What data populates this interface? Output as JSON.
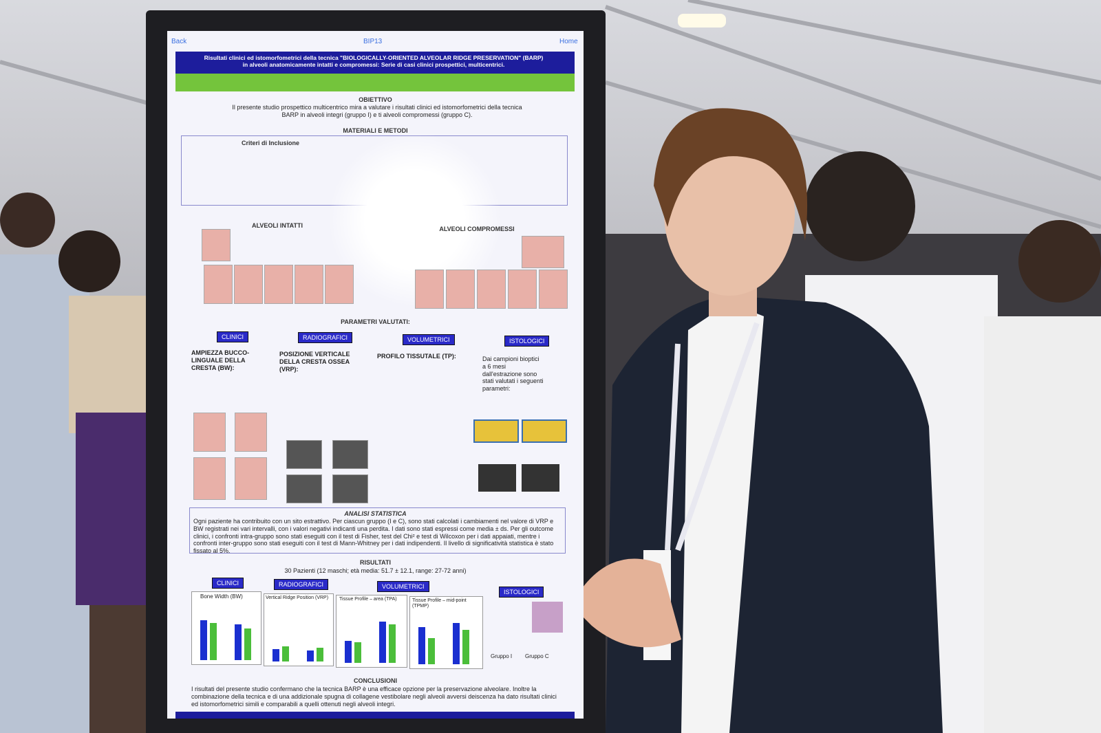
{
  "screen": {
    "nav": {
      "back": "Back",
      "code": "BIP13",
      "home": "Home"
    },
    "title": "Risultati clinici ed istomorfometrici della tecnica \"BIOLOGICALLY-ORIENTED ALVEOLAR RIDGE PRESERVATION\" (BARP) in alveoli anatomicamente intatti e compromessi: Serie di casi clinici prospettici, multicentrici.",
    "objective": {
      "heading": "OBIETTIVO",
      "text": "Il presente studio prospettico multicentrico mira a valutare i risultati clinici ed istomorfometrici della tecnica BARP in alveoli integri (gruppo I) e ti alveoli compromessi (gruppo C)."
    },
    "methods": {
      "heading": "MATERIALI E METODI",
      "inclusion": "Criteri di Inclusione",
      "intact": "ALVEOLI INTATTI",
      "compromised": "ALVEOLI COMPROMESSI"
    },
    "parameters": {
      "heading": "PARAMETRI VALUTATI:",
      "tags": [
        "CLINICI",
        "RADIOGRAFICI",
        "VOLUMETRICI",
        "ISTOLOGICI"
      ],
      "items": [
        "AMPIEZZA BUCCO-LINGUALE DELLA CRESTA (BW):",
        "POSIZIONE VERTICALE DELLA CRESTA OSSEA (VRP):",
        "PROFILO TISSUTALE (TP):",
        "Dai campioni bioptici a 6 mesi dall'estrazione sono stati valutati i seguenti parametri:"
      ]
    },
    "statistics": {
      "heading": "ANALISI STATISTICA",
      "text": "Ogni paziente ha contribuito con un sito estrattivo. Per ciascun gruppo (I e C), sono stati calcolati i cambiamenti nel valore di VRP e BW registrati nei vari intervalli, con i valori negativi indicanti una perdita. I dati sono stati espressi come media ± ds. Per gli outcome clinici, i confronti intra-gruppo sono stati eseguiti con il test di Fisher, test del Chi² e test di Wilcoxon per i dati appaiati, mentre i confronti inter-gruppo sono stati eseguiti con il test di Mann-Whitney per i dati indipendenti. Il livello di significatività statistica è stato fissato al 5%."
    },
    "results": {
      "heading": "RISULTATI",
      "patients": "30 Pazienti (12 maschi; età media: 51.7 ± 12.1, range: 27-72 anni)",
      "charts": [
        "Bone Width (BW)",
        "Vertical Ridge Position (VRP)",
        "Tissue Profile – area (TPA)",
        "Tissue Profile – mid-point (TPMP)"
      ],
      "groups": [
        "Gruppo I",
        "Gruppo C"
      ]
    },
    "conclusions": {
      "heading": "CONCLUSIONI",
      "text": "I risultati del presente studio confermano che la tecnica BARP è una efficace opzione per la preservazione alveolare. Inoltre la combinazione della tecnica e di una addizionale spugna di collagene vestibolare negli alveoli avversi deiscenza ha dato risultati clinici ed istomorfometrici simili e comparabili a quelli ottenuti negli alveoli integri."
    }
  }
}
